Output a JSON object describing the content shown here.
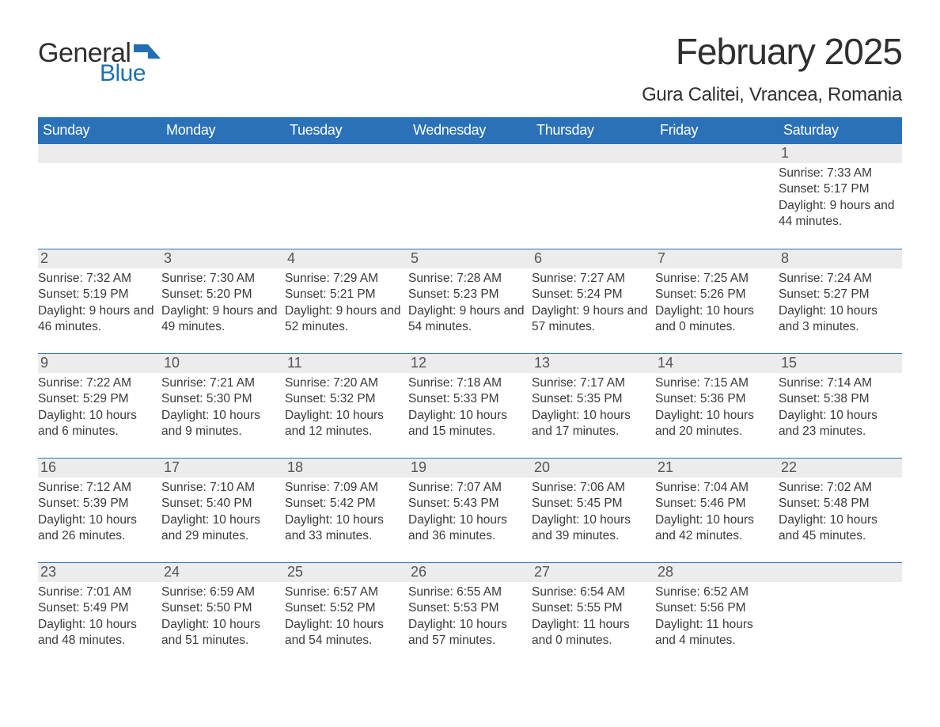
{
  "logo": {
    "text_general": "General",
    "text_blue": "Blue",
    "flag_color": "#1f6fb2"
  },
  "title": "February 2025",
  "location": "Gura Calitei, Vrancea, Romania",
  "style": {
    "header_bg": "#2a71b8",
    "header_text": "#ffffff",
    "daynum_bg": "#ececec",
    "daynum_text": "#545454",
    "body_text": "#3a3a3a",
    "rule_color": "#2a71b8",
    "background": "#ffffff",
    "title_fontsize": 46,
    "location_fontsize": 24,
    "weekday_fontsize": 18,
    "body_fontsize": 15.5,
    "columns": 7
  },
  "weekdays": [
    "Sunday",
    "Monday",
    "Tuesday",
    "Wednesday",
    "Thursday",
    "Friday",
    "Saturday"
  ],
  "weeks": [
    [
      {
        "day": "",
        "lines": []
      },
      {
        "day": "",
        "lines": []
      },
      {
        "day": "",
        "lines": []
      },
      {
        "day": "",
        "lines": []
      },
      {
        "day": "",
        "lines": []
      },
      {
        "day": "",
        "lines": []
      },
      {
        "day": "1",
        "lines": [
          "Sunrise: 7:33 AM",
          "Sunset: 5:17 PM",
          "Daylight: 9 hours and 44 minutes."
        ]
      }
    ],
    [
      {
        "day": "2",
        "lines": [
          "Sunrise: 7:32 AM",
          "Sunset: 5:19 PM",
          "Daylight: 9 hours and 46 minutes."
        ]
      },
      {
        "day": "3",
        "lines": [
          "Sunrise: 7:30 AM",
          "Sunset: 5:20 PM",
          "Daylight: 9 hours and 49 minutes."
        ]
      },
      {
        "day": "4",
        "lines": [
          "Sunrise: 7:29 AM",
          "Sunset: 5:21 PM",
          "Daylight: 9 hours and 52 minutes."
        ]
      },
      {
        "day": "5",
        "lines": [
          "Sunrise: 7:28 AM",
          "Sunset: 5:23 PM",
          "Daylight: 9 hours and 54 minutes."
        ]
      },
      {
        "day": "6",
        "lines": [
          "Sunrise: 7:27 AM",
          "Sunset: 5:24 PM",
          "Daylight: 9 hours and 57 minutes."
        ]
      },
      {
        "day": "7",
        "lines": [
          "Sunrise: 7:25 AM",
          "Sunset: 5:26 PM",
          "Daylight: 10 hours and 0 minutes."
        ]
      },
      {
        "day": "8",
        "lines": [
          "Sunrise: 7:24 AM",
          "Sunset: 5:27 PM",
          "Daylight: 10 hours and 3 minutes."
        ]
      }
    ],
    [
      {
        "day": "9",
        "lines": [
          "Sunrise: 7:22 AM",
          "Sunset: 5:29 PM",
          "Daylight: 10 hours and 6 minutes."
        ]
      },
      {
        "day": "10",
        "lines": [
          "Sunrise: 7:21 AM",
          "Sunset: 5:30 PM",
          "Daylight: 10 hours and 9 minutes."
        ]
      },
      {
        "day": "11",
        "lines": [
          "Sunrise: 7:20 AM",
          "Sunset: 5:32 PM",
          "Daylight: 10 hours and 12 minutes."
        ]
      },
      {
        "day": "12",
        "lines": [
          "Sunrise: 7:18 AM",
          "Sunset: 5:33 PM",
          "Daylight: 10 hours and 15 minutes."
        ]
      },
      {
        "day": "13",
        "lines": [
          "Sunrise: 7:17 AM",
          "Sunset: 5:35 PM",
          "Daylight: 10 hours and 17 minutes."
        ]
      },
      {
        "day": "14",
        "lines": [
          "Sunrise: 7:15 AM",
          "Sunset: 5:36 PM",
          "Daylight: 10 hours and 20 minutes."
        ]
      },
      {
        "day": "15",
        "lines": [
          "Sunrise: 7:14 AM",
          "Sunset: 5:38 PM",
          "Daylight: 10 hours and 23 minutes."
        ]
      }
    ],
    [
      {
        "day": "16",
        "lines": [
          "Sunrise: 7:12 AM",
          "Sunset: 5:39 PM",
          "Daylight: 10 hours and 26 minutes."
        ]
      },
      {
        "day": "17",
        "lines": [
          "Sunrise: 7:10 AM",
          "Sunset: 5:40 PM",
          "Daylight: 10 hours and 29 minutes."
        ]
      },
      {
        "day": "18",
        "lines": [
          "Sunrise: 7:09 AM",
          "Sunset: 5:42 PM",
          "Daylight: 10 hours and 33 minutes."
        ]
      },
      {
        "day": "19",
        "lines": [
          "Sunrise: 7:07 AM",
          "Sunset: 5:43 PM",
          "Daylight: 10 hours and 36 minutes."
        ]
      },
      {
        "day": "20",
        "lines": [
          "Sunrise: 7:06 AM",
          "Sunset: 5:45 PM",
          "Daylight: 10 hours and 39 minutes."
        ]
      },
      {
        "day": "21",
        "lines": [
          "Sunrise: 7:04 AM",
          "Sunset: 5:46 PM",
          "Daylight: 10 hours and 42 minutes."
        ]
      },
      {
        "day": "22",
        "lines": [
          "Sunrise: 7:02 AM",
          "Sunset: 5:48 PM",
          "Daylight: 10 hours and 45 minutes."
        ]
      }
    ],
    [
      {
        "day": "23",
        "lines": [
          "Sunrise: 7:01 AM",
          "Sunset: 5:49 PM",
          "Daylight: 10 hours and 48 minutes."
        ]
      },
      {
        "day": "24",
        "lines": [
          "Sunrise: 6:59 AM",
          "Sunset: 5:50 PM",
          "Daylight: 10 hours and 51 minutes."
        ]
      },
      {
        "day": "25",
        "lines": [
          "Sunrise: 6:57 AM",
          "Sunset: 5:52 PM",
          "Daylight: 10 hours and 54 minutes."
        ]
      },
      {
        "day": "26",
        "lines": [
          "Sunrise: 6:55 AM",
          "Sunset: 5:53 PM",
          "Daylight: 10 hours and 57 minutes."
        ]
      },
      {
        "day": "27",
        "lines": [
          "Sunrise: 6:54 AM",
          "Sunset: 5:55 PM",
          "Daylight: 11 hours and 0 minutes."
        ]
      },
      {
        "day": "28",
        "lines": [
          "Sunrise: 6:52 AM",
          "Sunset: 5:56 PM",
          "Daylight: 11 hours and 4 minutes."
        ]
      },
      {
        "day": "",
        "lines": []
      }
    ]
  ]
}
